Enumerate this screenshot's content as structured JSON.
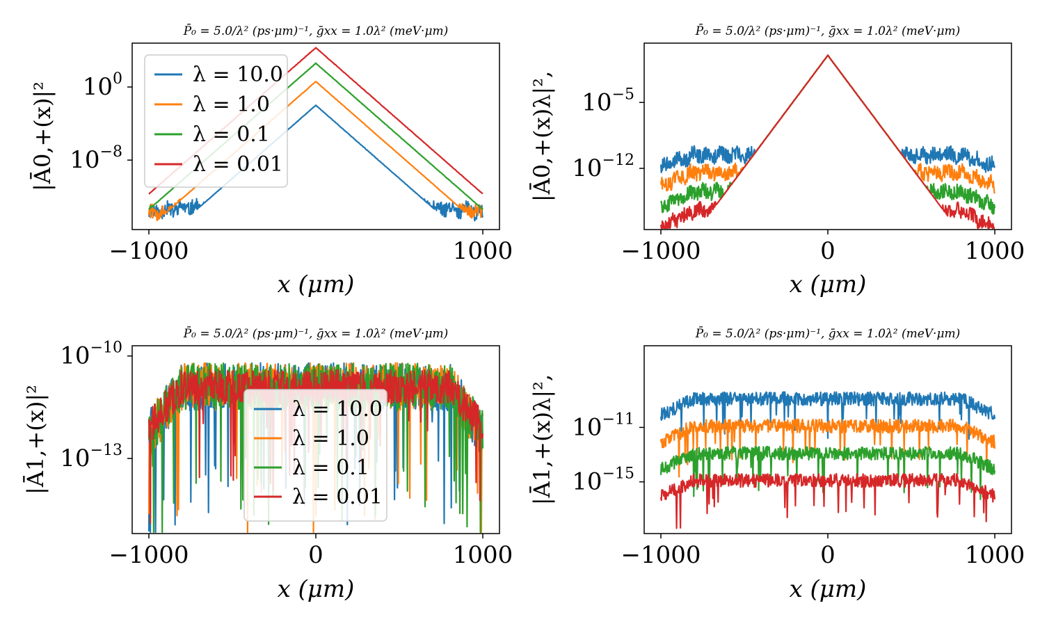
{
  "figure": {
    "layout": "2x2 grid",
    "series_names": [
      "λ = 10.0",
      "λ = 1.0",
      "λ = 0.1",
      "λ = 0.01"
    ],
    "series_colors": [
      "#1f77b4",
      "#ff7f0e",
      "#2ca02c",
      "#d62728"
    ]
  },
  "chart_data": [
    {
      "type": "line",
      "title": "P̄₀ = 5.0/λ² (ps·μm)⁻¹, ḡxx = 1.0λ² (meV·μm)",
      "xlabel": "x (μm)",
      "ylabel": "|Ā0,+(x)|²",
      "yscale": "log",
      "xlim": [
        -1100,
        1100
      ],
      "ylim_log10": [
        -15.6,
        4.8
      ],
      "xticks": [
        {
          "v": -1000,
          "label": "−1000"
        },
        {
          "v": 1000,
          "label": "1000"
        }
      ],
      "yticks": [
        {
          "exp": 0,
          "label": "10",
          "sup": "0"
        },
        {
          "exp": -8,
          "label": "10",
          "sup": "−8"
        }
      ],
      "legend": {
        "position": "upper-left",
        "entries": [
          "λ = 10.0",
          "λ = 1.0",
          "λ = 0.1",
          "λ = 0.01"
        ]
      },
      "series": [
        {
          "name": "λ = 10.0",
          "color": "#1f77b4",
          "peak_x": 0,
          "peak_log10": -2.0,
          "decay_per_um": 0.016,
          "noise_floor_log10": -13.2,
          "edge_drop": 0.6
        },
        {
          "name": "λ = 1.0",
          "color": "#ff7f0e",
          "peak_x": 0,
          "peak_log10": 0.6,
          "decay_per_um": 0.016,
          "noise_floor_log10": -13.2,
          "edge_drop": 0.6
        },
        {
          "name": "λ = 0.1",
          "color": "#2ca02c",
          "peak_x": 0,
          "peak_log10": 2.6,
          "decay_per_um": 0.016,
          "noise_floor_log10": -13.3,
          "edge_drop": 0.6
        },
        {
          "name": "λ = 0.01",
          "color": "#d62728",
          "peak_x": 0,
          "peak_log10": 4.3,
          "decay_per_um": 0.016,
          "noise_floor_log10": -13.3,
          "edge_drop": 0.6
        }
      ]
    },
    {
      "type": "line",
      "title": "P̄₀ = 5.0/λ² (ps·μm)⁻¹, ḡxx = 1.0λ² (meV·μm)",
      "xlabel": "x (μm)",
      "ylabel": "|Ā0,+(x)λ|²,",
      "yscale": "log",
      "xlim": [
        -1100,
        1100
      ],
      "ylim_log10": [
        -18.5,
        1.3
      ],
      "xticks": [
        {
          "v": -1000,
          "label": "−1000"
        },
        {
          "v": 0,
          "label": "0"
        },
        {
          "v": 1000,
          "label": "1000"
        }
      ],
      "yticks": [
        {
          "exp": -5,
          "label": "10",
          "sup": "−5"
        },
        {
          "exp": -12,
          "label": "10",
          "sup": "−12"
        }
      ],
      "legend": null,
      "series": [
        {
          "name": "λ = 10.0",
          "color": "#1f77b4",
          "peak_x": 0,
          "peak_log10": 0.0,
          "decay_per_um": 0.02375,
          "noise_floor_log10": -10.6,
          "edge_drop": 1.2
        },
        {
          "name": "λ = 1.0",
          "color": "#ff7f0e",
          "peak_x": 0,
          "peak_log10": 0.0,
          "decay_per_um": 0.02375,
          "noise_floor_log10": -12.4,
          "edge_drop": 1.4
        },
        {
          "name": "λ = 0.1",
          "color": "#2ca02c",
          "peak_x": 0,
          "peak_log10": 0.0,
          "decay_per_um": 0.02375,
          "noise_floor_log10": -14.5,
          "edge_drop": 1.6
        },
        {
          "name": "λ = 0.01",
          "color": "#d62728",
          "peak_x": 0,
          "peak_log10": 0.0,
          "decay_per_um": 0.02375,
          "noise_floor_log10": -16.5,
          "edge_drop": 1.8
        }
      ]
    },
    {
      "type": "line",
      "title": "P̄₀ = 5.0/λ² (ps·μm)⁻¹, ḡxx = 1.0λ² (meV·μm)",
      "xlabel": "x (μm)",
      "ylabel": "|Ā1,+(x)|²",
      "yscale": "log",
      "xlim": [
        -1100,
        1100
      ],
      "ylim_log10": [
        -15.2,
        -9.7
      ],
      "xticks": [
        {
          "v": -1000,
          "label": "−1000"
        },
        {
          "v": 0,
          "label": "0"
        },
        {
          "v": 1000,
          "label": "1000"
        }
      ],
      "yticks": [
        {
          "exp": -10,
          "label": "10",
          "sup": "−10"
        },
        {
          "exp": -13,
          "label": "10",
          "sup": "−13"
        }
      ],
      "legend": {
        "position": "center",
        "entries": [
          "λ = 10.0",
          "λ = 1.0",
          "λ = 0.1",
          "λ = 0.01"
        ]
      },
      "series": [
        {
          "name": "λ = 10.0",
          "color": "#1f77b4",
          "level_log10": -10.9,
          "spread": 1.4,
          "edge_drop": 1.4
        },
        {
          "name": "λ = 1.0",
          "color": "#ff7f0e",
          "level_log10": -10.9,
          "spread": 1.4,
          "edge_drop": 1.4
        },
        {
          "name": "λ = 0.1",
          "color": "#2ca02c",
          "level_log10": -10.9,
          "spread": 1.4,
          "edge_drop": 1.4
        },
        {
          "name": "λ = 0.01",
          "color": "#d62728",
          "level_log10": -10.9,
          "spread": 1.0,
          "edge_drop": 1.2
        }
      ]
    },
    {
      "type": "line",
      "title": "P̄₀ = 5.0/λ² (ps·μm)⁻¹, ḡxx = 1.0λ² (meV·μm)",
      "xlabel": "x (μm)",
      "ylabel": "|Ā1,+(x)λ|²,",
      "yscale": "log",
      "xlim": [
        -1100,
        1100
      ],
      "ylim_log10": [
        -18.8,
        -5.0
      ],
      "xticks": [
        {
          "v": -1000,
          "label": "−1000"
        },
        {
          "v": 0,
          "label": "0"
        },
        {
          "v": 1000,
          "label": "1000"
        }
      ],
      "yticks": [
        {
          "exp": -11,
          "label": "10",
          "sup": "−11"
        },
        {
          "exp": -15,
          "label": "10",
          "sup": "−15"
        }
      ],
      "legend": null,
      "series": [
        {
          "name": "λ = 10.0",
          "color": "#1f77b4",
          "level_log10": -8.9,
          "spread": 1.0,
          "edge_drop": 1.2
        },
        {
          "name": "λ = 1.0",
          "color": "#ff7f0e",
          "level_log10": -10.9,
          "spread": 1.0,
          "edge_drop": 1.2
        },
        {
          "name": "λ = 0.1",
          "color": "#2ca02c",
          "level_log10": -12.9,
          "spread": 1.0,
          "edge_drop": 1.2
        },
        {
          "name": "λ = 0.01",
          "color": "#d62728",
          "level_log10": -14.9,
          "spread": 1.0,
          "edge_drop": 1.2
        }
      ]
    }
  ]
}
